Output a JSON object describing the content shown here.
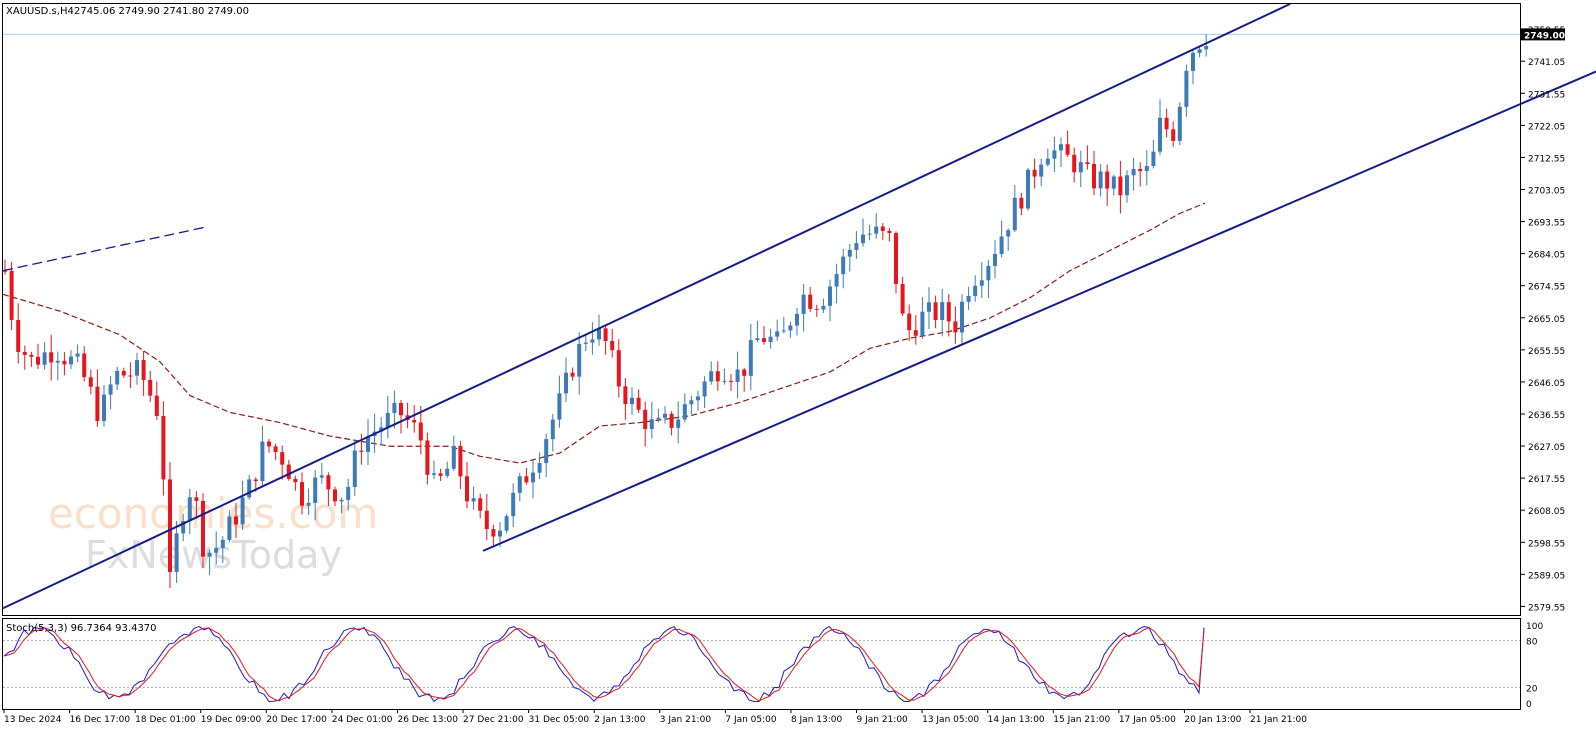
{
  "header": {
    "symbol_tf": "XAUUSD.s,H4",
    "ohlc": "2745.06 2749.90 2741.80 2749.00"
  },
  "oscillator": {
    "label": "Stoch(5,3,3) 96.7364 93.4370",
    "levels": [
      100,
      80,
      20,
      0
    ]
  },
  "watermark": {
    "line1": "economies.com",
    "line2": "FxNewsToday"
  },
  "colors": {
    "bull": "#3d7ab8",
    "bear": "#e8161c",
    "channel": "#141b8c",
    "ma": "#8b1c12",
    "main_line": "#1b1bd0",
    "signal_line": "#e8161c",
    "price_tag": "#000000"
  },
  "chart_data": {
    "type": "candlestick",
    "instrument": "XAUUSD.s",
    "timeframe": "H4",
    "current_price": "2749.00",
    "ylim": [
      2577,
      2758
    ],
    "y_ticks": [
      "2750.55",
      "2741.05",
      "2731.55",
      "2722.05",
      "2712.55",
      "2703.05",
      "2693.55",
      "2684.05",
      "2674.55",
      "2665.05",
      "2655.55",
      "2646.05",
      "2636.55",
      "2627.05",
      "2617.55",
      "2608.05",
      "2598.55",
      "2589.05",
      "2579.55"
    ],
    "x_ticks": [
      "13 Dec 2024",
      "16 Dec 17:00",
      "18 Dec 01:00",
      "19 Dec 09:00",
      "20 Dec 17:00",
      "24 Dec 01:00",
      "26 Dec 13:00",
      "27 Dec 21:00",
      "31 Dec 05:00",
      "2 Jan 13:00",
      "3 Jan 21:00",
      "7 Jan 05:00",
      "8 Jan 13:00",
      "9 Jan 21:00",
      "13 Jan 05:00",
      "14 Jan 13:00",
      "15 Jan 21:00",
      "17 Jan 05:00",
      "20 Jan 13:00",
      "21 Jan 21:00"
    ],
    "anchors": [
      {
        "x": 5,
        "c": 2679
      },
      {
        "x": 15,
        "c": 2660
      },
      {
        "x": 30,
        "c": 2652
      },
      {
        "x": 55,
        "c": 2656
      },
      {
        "x": 80,
        "c": 2650
      },
      {
        "x": 100,
        "c": 2636
      },
      {
        "x": 115,
        "c": 2648
      },
      {
        "x": 140,
        "c": 2649
      },
      {
        "x": 160,
        "c": 2636
      },
      {
        "x": 170,
        "c": 2586
      },
      {
        "x": 180,
        "c": 2606
      },
      {
        "x": 192,
        "c": 2616
      },
      {
        "x": 205,
        "c": 2595
      },
      {
        "x": 220,
        "c": 2598
      },
      {
        "x": 235,
        "c": 2606
      },
      {
        "x": 250,
        "c": 2615
      },
      {
        "x": 265,
        "c": 2628
      },
      {
        "x": 285,
        "c": 2623
      },
      {
        "x": 300,
        "c": 2612
      },
      {
        "x": 320,
        "c": 2617
      },
      {
        "x": 345,
        "c": 2612
      },
      {
        "x": 360,
        "c": 2628
      },
      {
        "x": 380,
        "c": 2633
      },
      {
        "x": 400,
        "c": 2637
      },
      {
        "x": 420,
        "c": 2630
      },
      {
        "x": 435,
        "c": 2614
      },
      {
        "x": 455,
        "c": 2624
      },
      {
        "x": 470,
        "c": 2610
      },
      {
        "x": 485,
        "c": 2603
      },
      {
        "x": 500,
        "c": 2604
      },
      {
        "x": 520,
        "c": 2615
      },
      {
        "x": 540,
        "c": 2626
      },
      {
        "x": 560,
        "c": 2640
      },
      {
        "x": 575,
        "c": 2653
      },
      {
        "x": 590,
        "c": 2662
      },
      {
        "x": 605,
        "c": 2658
      },
      {
        "x": 620,
        "c": 2645
      },
      {
        "x": 635,
        "c": 2638
      },
      {
        "x": 655,
        "c": 2632
      },
      {
        "x": 675,
        "c": 2635
      },
      {
        "x": 700,
        "c": 2644
      },
      {
        "x": 720,
        "c": 2651
      },
      {
        "x": 740,
        "c": 2648
      },
      {
        "x": 760,
        "c": 2660
      },
      {
        "x": 780,
        "c": 2657
      },
      {
        "x": 800,
        "c": 2672
      },
      {
        "x": 820,
        "c": 2670
      },
      {
        "x": 840,
        "c": 2680
      },
      {
        "x": 858,
        "c": 2690
      },
      {
        "x": 875,
        "c": 2690
      },
      {
        "x": 890,
        "c": 2688
      },
      {
        "x": 905,
        "c": 2660
      },
      {
        "x": 920,
        "c": 2665
      },
      {
        "x": 940,
        "c": 2667
      },
      {
        "x": 955,
        "c": 2663
      },
      {
        "x": 970,
        "c": 2676
      },
      {
        "x": 990,
        "c": 2683
      },
      {
        "x": 1010,
        "c": 2695
      },
      {
        "x": 1030,
        "c": 2706
      },
      {
        "x": 1045,
        "c": 2716
      },
      {
        "x": 1060,
        "c": 2713
      },
      {
        "x": 1075,
        "c": 2711
      },
      {
        "x": 1090,
        "c": 2706
      },
      {
        "x": 1105,
        "c": 2706
      },
      {
        "x": 1118,
        "c": 2702
      },
      {
        "x": 1135,
        "c": 2708
      },
      {
        "x": 1150,
        "c": 2708
      },
      {
        "x": 1160,
        "c": 2722
      },
      {
        "x": 1175,
        "c": 2720
      },
      {
        "x": 1185,
        "c": 2740
      },
      {
        "x": 1195,
        "c": 2746
      },
      {
        "x": 1207,
        "c": 2749
      }
    ],
    "channel_upper": [
      [
        3,
        2579
      ],
      [
        1290,
        2758
      ]
    ],
    "channel_lower": [
      [
        483,
        2596
      ],
      [
        1596,
        2738
      ]
    ],
    "dashed_trendline": [
      [
        3,
        2679
      ],
      [
        207,
        2692
      ]
    ],
    "moving_average": [
      [
        3,
        2672
      ],
      [
        60,
        2667
      ],
      [
        120,
        2660
      ],
      [
        160,
        2652
      ],
      [
        190,
        2642
      ],
      [
        230,
        2637
      ],
      [
        280,
        2634
      ],
      [
        330,
        2630
      ],
      [
        390,
        2627
      ],
      [
        450,
        2627
      ],
      [
        480,
        2624
      ],
      [
        520,
        2622
      ],
      [
        560,
        2625
      ],
      [
        600,
        2633
      ],
      [
        640,
        2634
      ],
      [
        690,
        2636
      ],
      [
        740,
        2640
      ],
      [
        790,
        2645
      ],
      [
        830,
        2649
      ],
      [
        870,
        2656
      ],
      [
        910,
        2659
      ],
      [
        950,
        2661
      ],
      [
        990,
        2665
      ],
      [
        1030,
        2671
      ],
      [
        1070,
        2679
      ],
      [
        1110,
        2685
      ],
      [
        1150,
        2691
      ],
      [
        1180,
        2696
      ],
      [
        1205,
        2699
      ]
    ]
  }
}
